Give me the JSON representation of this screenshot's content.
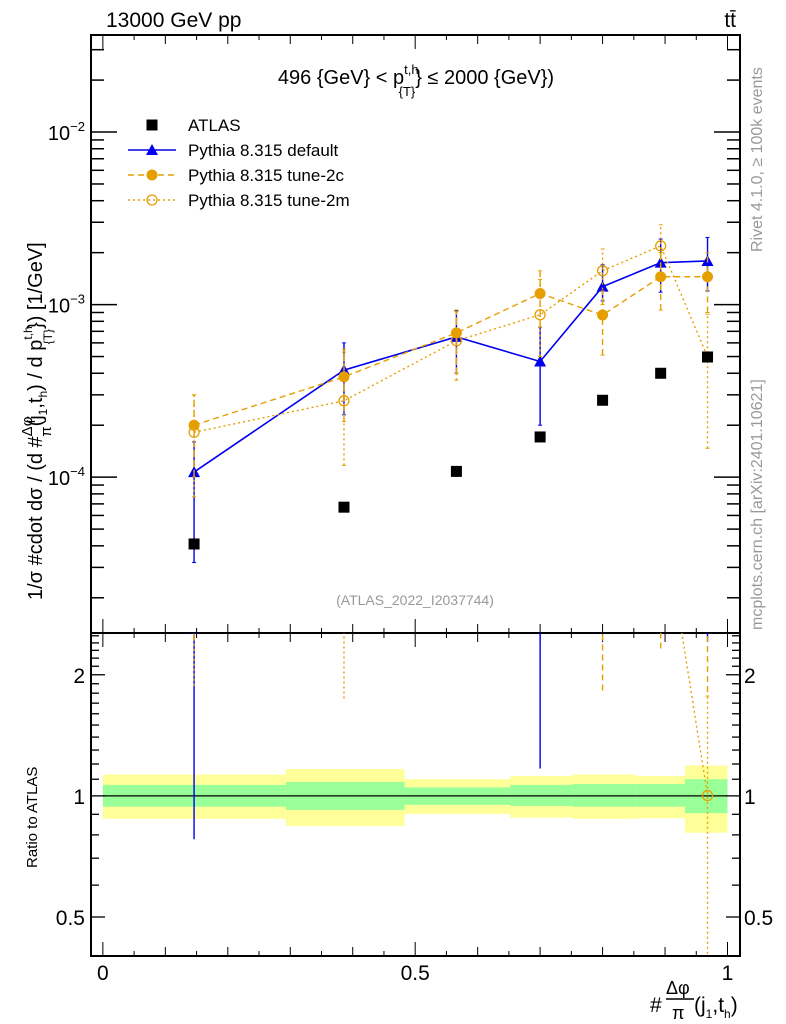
{
  "header": {
    "left": "13000 GeV pp",
    "right": "tt̄"
  },
  "side_text": {
    "rivet": "Rivet 4.1.0, ≥ 100k events",
    "mcplots": "mcplots.cern.ch [arXiv:2401.10621]"
  },
  "chart_data": [
    {
      "type": "scatter",
      "panel": "main",
      "title": {
        "pre": "496 {GeV} < p",
        "sup": "t,h",
        "sub": "{T}",
        "post": "} ≤ 2000 {GeV})"
      },
      "watermark": "(ATLAS_2022_I2037744)",
      "ylabel": {
        "a": "1/σ #cdot dσ / (d #",
        "frac_num": "Δφ",
        "frac_den": "π",
        "b": "(j",
        "b_sub": "1",
        "c": ",t",
        "c_sub": "h",
        "d": ") / d p",
        "d_sup": "t,h",
        "d_sub": "{T}",
        "e": "}) [1/GeV]"
      },
      "yscale": "log",
      "ylim": [
        1.25e-05,
        0.0365
      ],
      "xlim": [
        -0.019,
        1.02
      ],
      "yticks": [
        {
          "v": 0.01,
          "base": "10",
          "exp": "−2"
        },
        {
          "v": 0.001,
          "base": "10",
          "exp": "−3"
        },
        {
          "v": 0.0001,
          "base": "10",
          "exp": "−4"
        }
      ],
      "legend_position": "top-left",
      "x": [
        0.146,
        0.386,
        0.566,
        0.7,
        0.8,
        0.893,
        0.968
      ],
      "bins": [
        0,
        0.293,
        0.483,
        0.652,
        0.752,
        0.854,
        0.932,
        1.0
      ],
      "series": [
        {
          "name": "ATLAS",
          "color": "#000000",
          "marker": "square",
          "values": [
            4.1e-05,
            6.7e-05,
            0.000108,
            0.000171,
            0.000279,
            0.0004,
            0.000497
          ]
        },
        {
          "name": "Pythia 8.315 default",
          "color": "#0000ee",
          "marker": "triangle",
          "line": "solid",
          "values": [
            0.000107,
            0.000417,
            0.00065,
            0.000468,
            0.00127,
            0.00175,
            0.00179
          ],
          "err": [
            [
              3.2e-05,
              0.00016
            ],
            [
              0.00023,
              0.0006
            ],
            [
              0.0004,
              0.00092
            ],
            [
              0.0002,
              0.00074
            ],
            [
              0.00105,
              0.0017
            ],
            [
              0.00118,
              0.0024
            ],
            [
              0.0012,
              0.00245
            ]
          ]
        },
        {
          "name": "Pythia 8.315 tune-2c",
          "color": "#e69f00",
          "marker": "circle",
          "line": "dashed",
          "values": [
            0.0002,
            0.000381,
            0.000686,
            0.00116,
            0.00087,
            0.00145,
            0.00145
          ],
          "err": [
            [
              0.0001,
              0.0003
            ],
            [
              0.00021,
              0.00055
            ],
            [
              0.0004,
              0.00091
            ],
            [
              0.00074,
              0.00157
            ],
            [
              0.00051,
              0.0012
            ],
            [
              0.00093,
              0.002
            ],
            [
              0.0009,
              0.002
            ]
          ]
        },
        {
          "name": "Pythia 8.315 tune-2m",
          "color": "#e69f00",
          "marker": "open-circle",
          "line": "dotted",
          "values": [
            0.000182,
            0.000277,
            0.000617,
            0.000873,
            0.00157,
            0.00219,
            0.000498
          ],
          "err": [
            [
              7.7e-05,
              0.0003
            ],
            [
              0.000117,
              0.00053
            ],
            [
              0.000365,
              0.00093
            ],
            [
              0.0005,
              0.0014
            ],
            [
              0.001,
              0.0021
            ],
            [
              0.0015,
              0.0029
            ],
            [
              0.000147,
              0.00088
            ]
          ]
        }
      ]
    },
    {
      "type": "line",
      "panel": "ratio",
      "ylabel": "Ratio to ATLAS",
      "xlabel": {
        "a": "#",
        "frac_num": "Δφ",
        "frac_den": "π",
        "b": "(j",
        "b_sub": "1",
        "c": ",t",
        "c_sub": "h",
        "d": ")"
      },
      "yscale": "log",
      "ylim": [
        0.4,
        2.54
      ],
      "yticks": [
        {
          "v": 2,
          "label": "2"
        },
        {
          "v": 1,
          "label": "1"
        },
        {
          "v": 0.5,
          "label": "0.5"
        }
      ],
      "xticks": [
        {
          "v": 0,
          "label": "0"
        },
        {
          "v": 0.5,
          "label": "0.5"
        },
        {
          "v": 1,
          "label": "1"
        }
      ],
      "band_outer": [
        [
          0.877,
          1.13
        ],
        [
          0.842,
          1.166
        ],
        [
          0.902,
          1.1
        ],
        [
          0.883,
          1.12
        ],
        [
          0.877,
          1.13
        ],
        [
          0.88,
          1.12
        ],
        [
          0.81,
          1.19
        ]
      ],
      "band_inner": [
        [
          0.94,
          1.065
        ],
        [
          0.923,
          1.083
        ],
        [
          0.95,
          1.05
        ],
        [
          0.944,
          1.065
        ],
        [
          0.94,
          1.07
        ],
        [
          0.94,
          1.07
        ],
        [
          0.906,
          1.1
        ]
      ],
      "band_colors": {
        "outer": "#ffff99",
        "inner": "#99ff99"
      }
    }
  ]
}
